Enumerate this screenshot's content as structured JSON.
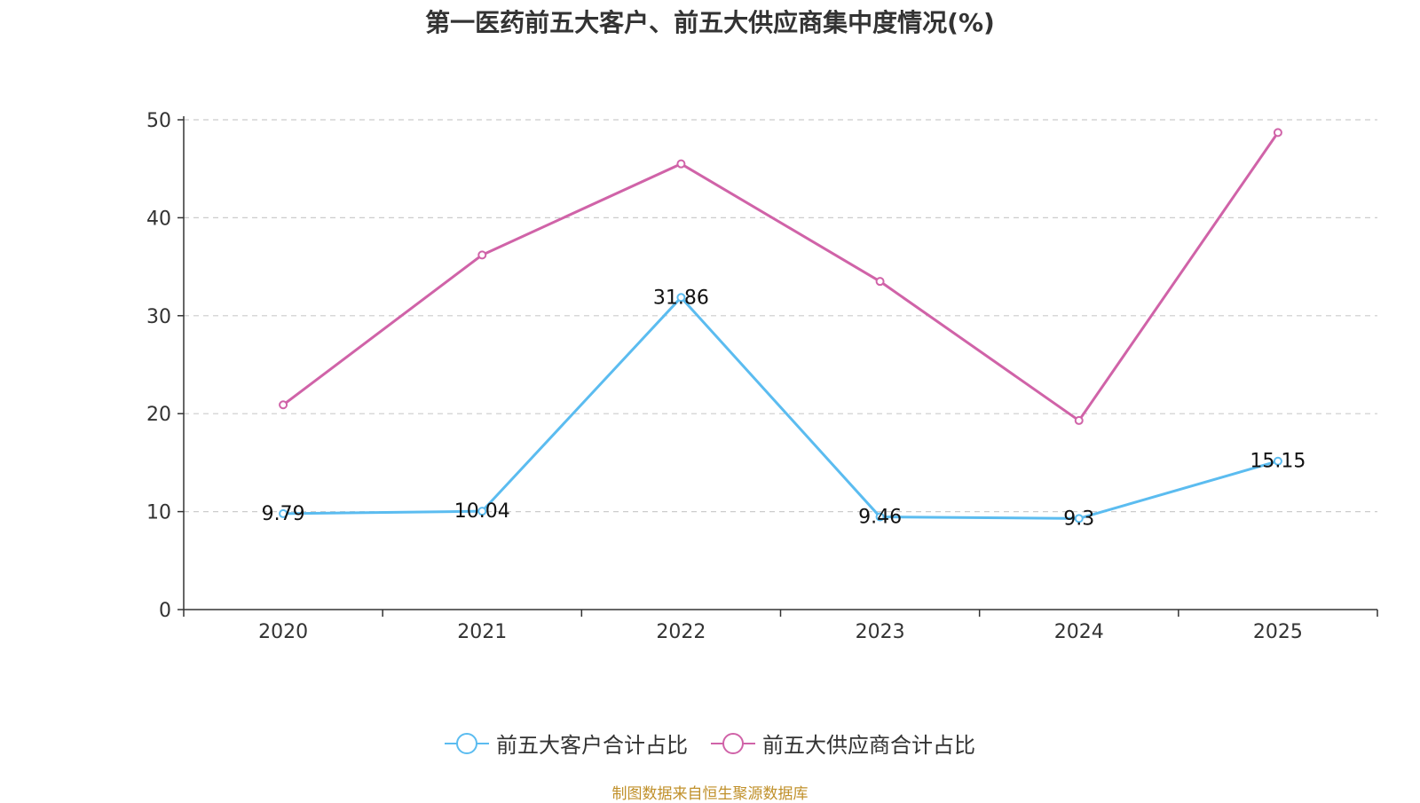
{
  "chart_data": {
    "type": "line",
    "title": "第一医药前五大客户、前五大供应商集中度情况(%)",
    "categories": [
      "2020",
      "2021",
      "2022",
      "2023",
      "2024",
      "2025"
    ],
    "ylim": [
      0,
      50
    ],
    "yticks": [
      0,
      10,
      20,
      30,
      40,
      50
    ],
    "grid": true,
    "legend_position": "bottom-center",
    "series": [
      {
        "name": "前五大客户合计占比",
        "color": "#5bbcf0",
        "values": [
          9.79,
          10.04,
          31.86,
          9.46,
          9.3,
          15.15
        ],
        "labels": [
          "9.79",
          "10.04",
          "31.86",
          "9.46",
          "9.3",
          "15.15"
        ]
      },
      {
        "name": "前五大供应商合计占比",
        "color": "#d063a8",
        "values": [
          20.9,
          36.2,
          45.5,
          33.5,
          19.3,
          48.7
        ],
        "labels": null
      }
    ]
  },
  "source": "制图数据来自恒生聚源数据库"
}
